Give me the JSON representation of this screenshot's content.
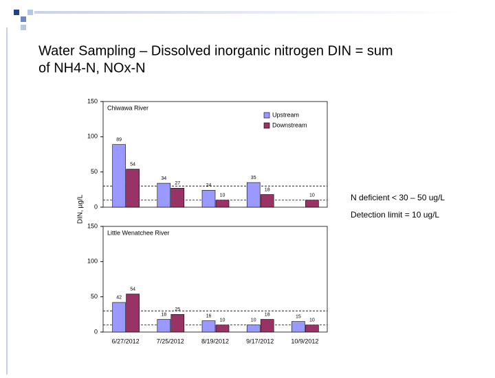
{
  "title_line1": "Water Sampling – Dissolved inorganic nitrogen DIN = sum",
  "title_line2": "of NH4-N,  NOx-N",
  "y_label": "DIN, µg/L",
  "notes": [
    "N deficient < 30 – 50 ug/L",
    "Detection limit = 10 ug/L"
  ],
  "chart_data": [
    {
      "type": "bar",
      "title": "Chiwawa River",
      "categories": [
        null,
        null,
        null,
        null,
        null
      ],
      "series": [
        {
          "name": "Upstream",
          "color": "#9999ff",
          "values": [
            89,
            34,
            24,
            35,
            null
          ]
        },
        {
          "name": "Downstream",
          "color": "#993366",
          "values": [
            54,
            27,
            10,
            18,
            10
          ]
        }
      ],
      "ylim": [
        0,
        150
      ],
      "yticks": [
        0,
        50,
        100,
        150
      ],
      "reference_lines": [
        30,
        10
      ],
      "legend": true
    },
    {
      "type": "bar",
      "title": "Little Wenatchee River",
      "categories": [
        "6/27/2012",
        "7/25/2012",
        "8/19/2012",
        "9/17/2012",
        "10/9/2012"
      ],
      "series": [
        {
          "color": "#9999ff",
          "values": [
            42,
            18,
            16,
            10,
            15
          ]
        },
        {
          "color": "#993366",
          "values": [
            54,
            25,
            10,
            18,
            10
          ]
        }
      ],
      "ylim": [
        0,
        150
      ],
      "yticks": [
        0,
        50,
        100,
        150
      ],
      "reference_lines": [
        30,
        10
      ],
      "legend": false
    }
  ]
}
